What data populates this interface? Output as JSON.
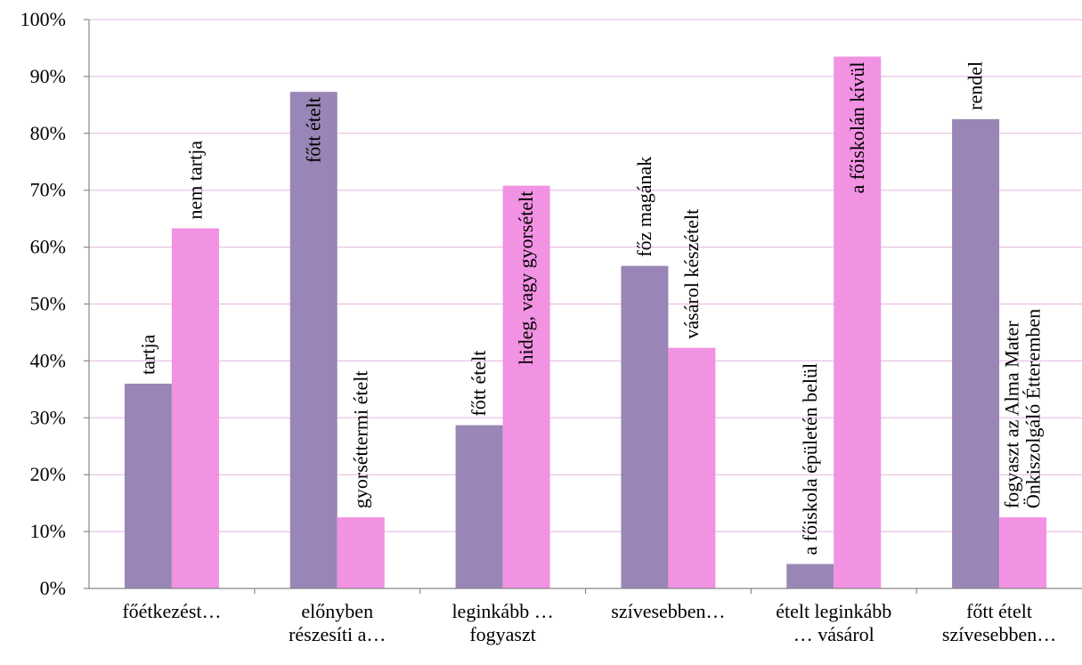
{
  "chart_data": {
    "type": "bar",
    "title": "",
    "xlabel": "",
    "ylabel": "",
    "ylim": [
      0,
      1
    ],
    "y_ticks": [
      "0%",
      "10%",
      "20%",
      "30%",
      "40%",
      "50%",
      "60%",
      "70%",
      "80%",
      "90%",
      "100%"
    ],
    "grid": true,
    "legend": "none",
    "categories": [
      [
        "főétkezést…"
      ],
      [
        "előnyben",
        "részesíti a…"
      ],
      [
        "leginkább …",
        "fogyaszt"
      ],
      [
        "szívesebben…"
      ],
      [
        "ételt leginkább",
        "… vásárol"
      ],
      [
        "főtt ételt",
        "szívesebben…"
      ]
    ],
    "series": [
      {
        "color": "#9a86b6",
        "values": [
          0.36,
          0.873,
          0.287,
          0.567,
          0.043,
          0.825
        ],
        "labels": [
          [
            "tartja"
          ],
          [
            "főtt  ételt"
          ],
          [
            "főtt  ételt"
          ],
          [
            "főz  magának"
          ],
          [
            "a  főiskola épületén belül"
          ],
          [
            "rendel"
          ]
        ]
      },
      {
        "color": "#f292e3",
        "values": [
          0.633,
          0.125,
          0.708,
          0.423,
          0.935,
          0.125
        ],
        "labels": [
          [
            "nem  tartja"
          ],
          [
            "gyorséttermi  ételt"
          ],
          [
            "hideg,  vagy  gyorsételt"
          ],
          [
            "vásárol  készételt"
          ],
          [
            "a  főiskolán  kívül"
          ],
          [
            "fogyaszt  az  Alma  Mater",
            "Önkiszolgáló  Étteremben"
          ]
        ]
      }
    ]
  }
}
